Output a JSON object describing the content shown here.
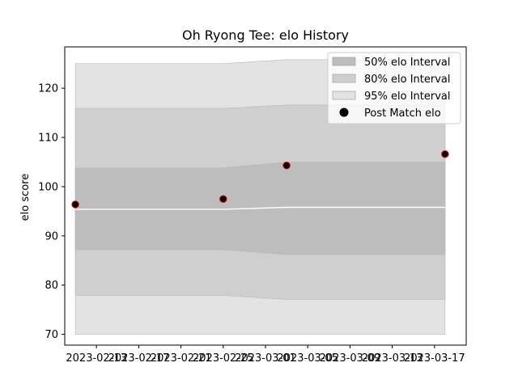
{
  "chart_data": {
    "type": "area",
    "title": "Oh Ryong Tee: elo History",
    "xlabel": "",
    "ylabel": "elo score",
    "x_ticks": [
      "2023-02-13",
      "2023-02-17",
      "2023-02-21",
      "2023-02-25",
      "2023-03-01",
      "2023-03-05",
      "2023-03-09",
      "2023-03-13",
      "2023-03-17"
    ],
    "y_ticks": [
      70,
      80,
      90,
      100,
      110,
      120
    ],
    "xlim": [
      "2023-02-10",
      "2023-03-20"
    ],
    "ylim": [
      67.8,
      128.4
    ],
    "grid": false,
    "legend_position": "top-right",
    "x": [
      "2023-02-11",
      "2023-02-25",
      "2023-03-03",
      "2023-03-18"
    ],
    "band_x": [
      "2023-02-11",
      "2023-02-25",
      "2023-03-03",
      "2023-03-18"
    ],
    "bands": [
      {
        "name": "95% elo Interval",
        "color": "#e3e3e3",
        "lower": [
          70.0,
          70.0,
          70.0,
          70.0
        ],
        "upper": [
          125.0,
          125.0,
          125.8,
          125.8
        ]
      },
      {
        "name": "80% elo Interval",
        "color": "#cfcfcf",
        "lower": [
          77.9,
          77.9,
          77.1,
          77.1
        ],
        "upper": [
          115.9,
          115.9,
          116.6,
          116.6
        ]
      },
      {
        "name": "50% elo Interval",
        "color": "#bdbdbd",
        "lower": [
          87.2,
          87.2,
          86.2,
          86.2
        ],
        "upper": [
          103.8,
          103.8,
          105.0,
          105.0
        ]
      }
    ],
    "center_line": [
      95.4,
      95.4,
      95.8,
      95.8
    ],
    "series": [
      {
        "name": "Post Match elo",
        "values": [
          96.4,
          97.5,
          104.3,
          106.6
        ],
        "color": "#000000",
        "edge_color": "#e00000"
      }
    ]
  }
}
